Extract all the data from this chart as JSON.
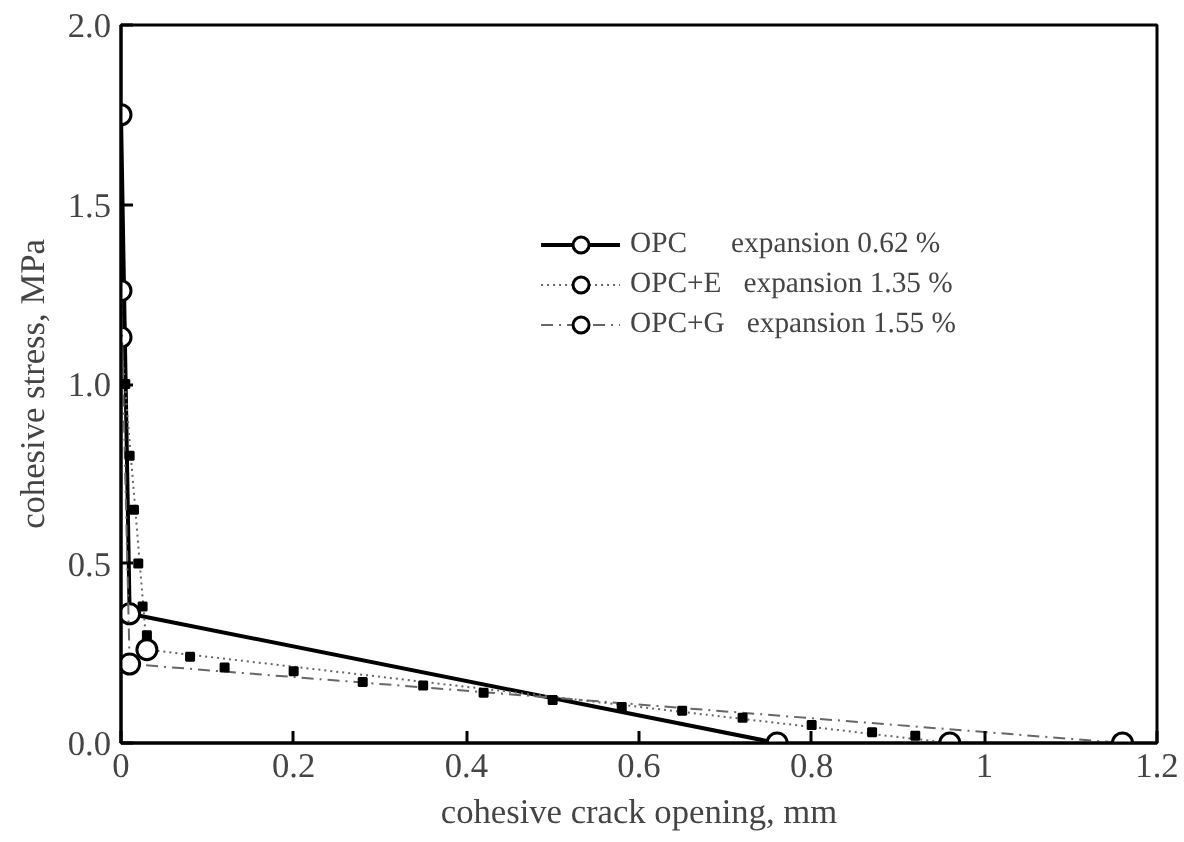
{
  "chart_data": {
    "type": "line",
    "xlabel": "cohesive crack opening, mm",
    "ylabel": "cohesive stress, MPa",
    "xlim": [
      0,
      1.2
    ],
    "ylim": [
      0,
      2.0
    ],
    "xticks": [
      0,
      0.2,
      0.4,
      0.6,
      0.8,
      1,
      1.2
    ],
    "yticks": [
      {
        "value": 0,
        "label": "0.0"
      },
      {
        "value": 0.5,
        "label": "0.5"
      },
      {
        "value": 1.0,
        "label": "1.0"
      },
      {
        "value": 1.5,
        "label": "1.5"
      },
      {
        "value": 2.0,
        "label": "2.0"
      }
    ],
    "grid": false,
    "legend": "top right",
    "marker": "circle",
    "series": [
      {
        "name": "OPC      expansion 0.62 %",
        "color": "#000000",
        "line_style": "solid",
        "x": [
          0,
          0.01,
          0.76
        ],
        "values": [
          1.75,
          0.36,
          0
        ]
      },
      {
        "name": "OPC+E   expansion 1.35 %",
        "color": "#666666",
        "line_style": "dotted",
        "x": [
          0,
          0.03,
          0.96
        ],
        "values": [
          1.13,
          0.26,
          0
        ]
      },
      {
        "name": "OPC+G   expansion 1.55 %",
        "color": "#666666",
        "line_style": "dashed",
        "x": [
          0,
          0.01,
          1.16
        ],
        "values": [
          1.26,
          0.22,
          0
        ]
      },
      {
        "type": "scatter",
        "marker": "square",
        "color": "#000000",
        "x": [
          0.005,
          0.01,
          0.015,
          0.02,
          0.025,
          0.03,
          0.08,
          0.12,
          0.2,
          0.28,
          0.35,
          0.42,
          0.5,
          0.58,
          0.65,
          0.72,
          0.8,
          0.87,
          0.92
        ],
        "values": [
          1.0,
          0.8,
          0.65,
          0.5,
          0.38,
          0.3,
          0.24,
          0.21,
          0.2,
          0.17,
          0.16,
          0.14,
          0.12,
          0.1,
          0.09,
          0.07,
          0.05,
          0.03,
          0.02
        ]
      }
    ]
  }
}
